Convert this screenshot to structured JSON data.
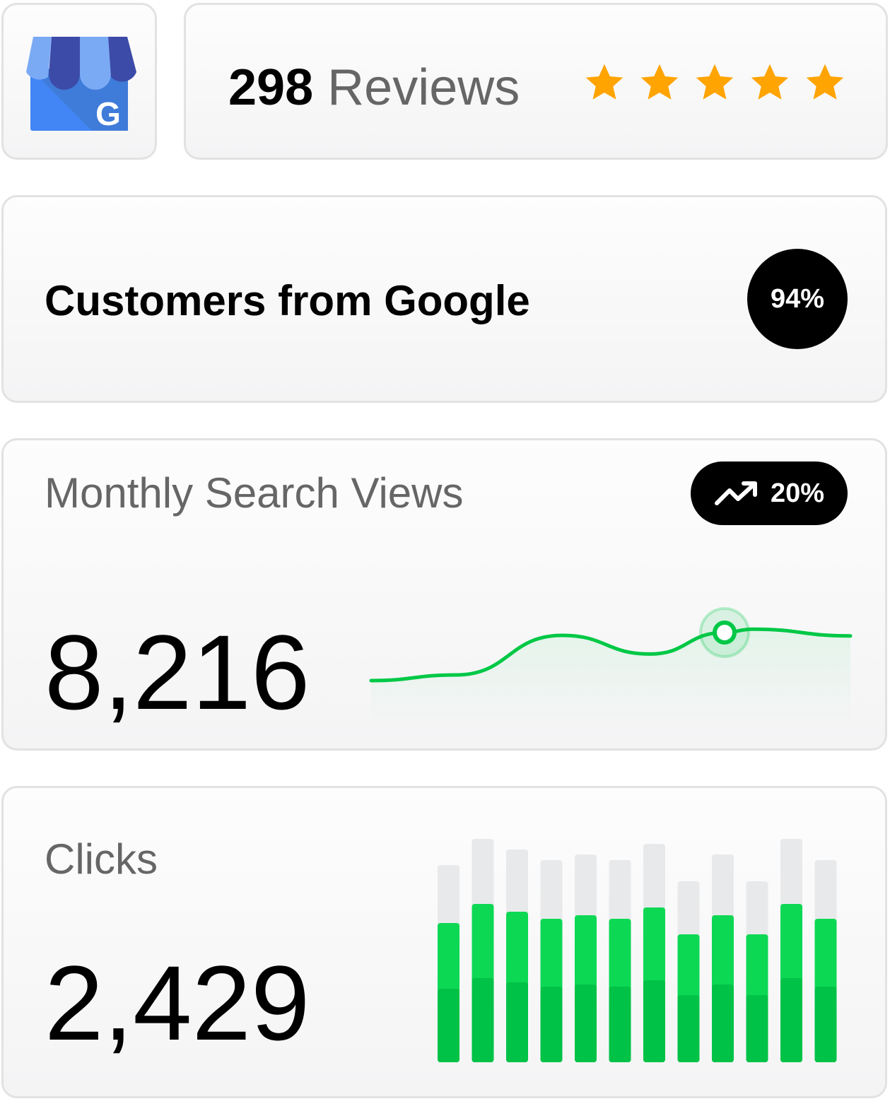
{
  "logo": {
    "icon": "google-my-business-icon",
    "letter": "G"
  },
  "reviews": {
    "count": "298",
    "label": "Reviews",
    "stars": 5,
    "star_color": "#FFA400"
  },
  "customers": {
    "title": "Customers from Google",
    "percent": "94%"
  },
  "search_views": {
    "title": "Monthly Search Views",
    "trend_icon": "trending-up-icon",
    "change": "20%",
    "value": "8,216",
    "line_color": "#00C846",
    "chart_data": {
      "type": "line",
      "values": [
        0.15,
        0.25,
        0.95,
        0.62,
        1.0,
        1.06,
        0.94
      ],
      "highlight_index": 4
    }
  },
  "clicks": {
    "title": "Clicks",
    "value": "2,429",
    "chart_data": {
      "type": "bar",
      "stacked": true,
      "series": [
        {
          "values": [
            104,
            119,
            113,
            107,
            110,
            107,
            116,
            95,
            110,
            95,
            119,
            107
          ],
          "color": "#00C246"
        },
        {
          "values": [
            93,
            105,
            100,
            96,
            98,
            96,
            103,
            86,
            98,
            86,
            105,
            96
          ],
          "color": "#0DD854"
        },
        {
          "values": [
            82,
            92,
            88,
            83,
            86,
            83,
            90,
            75,
            86,
            75,
            92,
            83
          ],
          "color": "#E8E9EB"
        }
      ]
    }
  }
}
